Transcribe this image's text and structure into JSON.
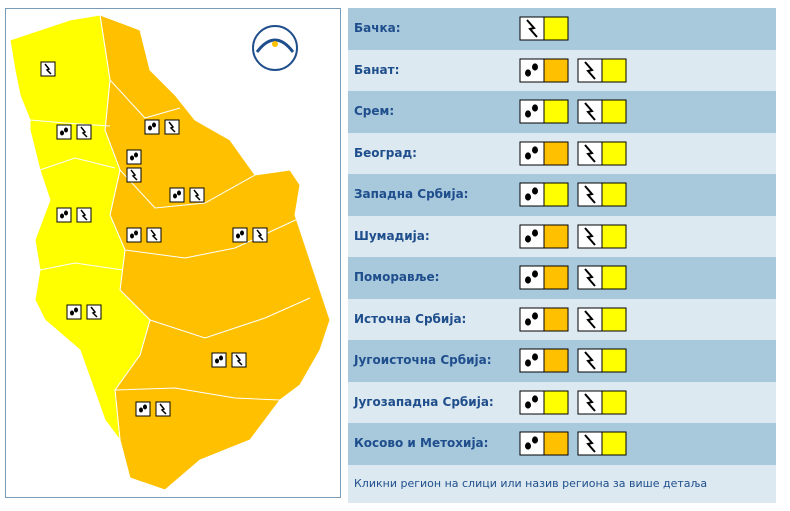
{
  "regions": [
    {
      "name": "Бачка:",
      "warnings": [
        {
          "kind": "thunder",
          "level": "yellow"
        }
      ]
    },
    {
      "name": "Банат:",
      "warnings": [
        {
          "kind": "rain",
          "level": "orange"
        },
        {
          "kind": "thunder",
          "level": "yellow"
        }
      ]
    },
    {
      "name": "Срем:",
      "warnings": [
        {
          "kind": "rain",
          "level": "yellow"
        },
        {
          "kind": "thunder",
          "level": "yellow"
        }
      ]
    },
    {
      "name": "Београд:",
      "warnings": [
        {
          "kind": "rain",
          "level": "orange"
        },
        {
          "kind": "thunder",
          "level": "yellow"
        }
      ]
    },
    {
      "name": "Западна Србија:",
      "warnings": [
        {
          "kind": "rain",
          "level": "yellow"
        },
        {
          "kind": "thunder",
          "level": "yellow"
        }
      ]
    },
    {
      "name": "Шумадија:",
      "warnings": [
        {
          "kind": "rain",
          "level": "orange"
        },
        {
          "kind": "thunder",
          "level": "yellow"
        }
      ]
    },
    {
      "name": "Поморавље:",
      "warnings": [
        {
          "kind": "rain",
          "level": "orange"
        },
        {
          "kind": "thunder",
          "level": "yellow"
        }
      ]
    },
    {
      "name": "Источна Србија:",
      "warnings": [
        {
          "kind": "rain",
          "level": "orange"
        },
        {
          "kind": "thunder",
          "level": "yellow"
        }
      ]
    },
    {
      "name": "Југоисточна Србија:",
      "warnings": [
        {
          "kind": "rain",
          "level": "orange"
        },
        {
          "kind": "thunder",
          "level": "yellow"
        }
      ]
    },
    {
      "name": "Југозападна Србија:",
      "warnings": [
        {
          "kind": "rain",
          "level": "yellow"
        },
        {
          "kind": "thunder",
          "level": "yellow"
        }
      ]
    },
    {
      "name": "Косово и Метохија:",
      "warnings": [
        {
          "kind": "rain",
          "level": "orange"
        },
        {
          "kind": "thunder",
          "level": "yellow"
        }
      ]
    }
  ],
  "level_colors": {
    "yellow": "#ffff00",
    "orange": "#ffc000"
  },
  "footer": "Кликни регион на слици или назив региона за више детаља"
}
